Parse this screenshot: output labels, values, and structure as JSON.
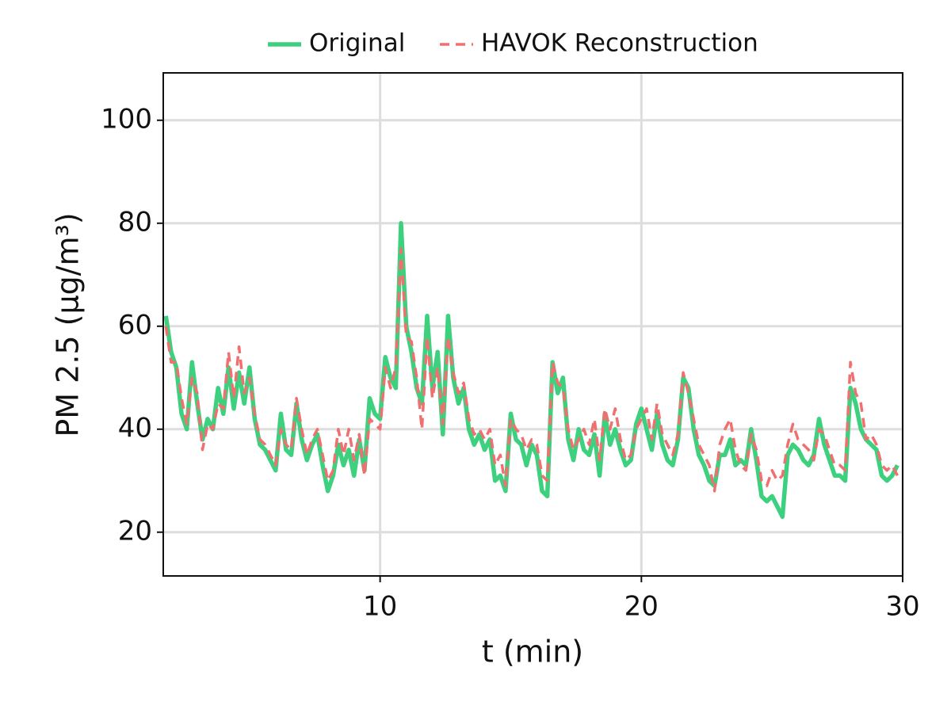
{
  "chart_data": {
    "type": "line",
    "xlabel": "t (min)",
    "ylabel": "PM 2.5 (μg/m³)",
    "x": [
      1.8,
      2,
      2.2,
      2.4,
      2.6,
      2.8,
      3,
      3.2,
      3.4,
      3.6,
      3.8,
      4,
      4.2,
      4.4,
      4.6,
      4.8,
      5,
      5.2,
      5.4,
      5.6,
      5.8,
      6,
      6.2,
      6.4,
      6.6,
      6.8,
      7,
      7.2,
      7.4,
      7.6,
      7.8,
      8,
      8.2,
      8.4,
      8.6,
      8.8,
      9,
      9.2,
      9.4,
      9.6,
      9.8,
      10,
      10.2,
      10.4,
      10.6,
      10.8,
      11,
      11.2,
      11.4,
      11.6,
      11.8,
      12,
      12.2,
      12.4,
      12.6,
      12.8,
      13,
      13.2,
      13.4,
      13.6,
      13.8,
      14,
      14.2,
      14.4,
      14.6,
      14.8,
      15,
      15.2,
      15.4,
      15.6,
      15.8,
      16,
      16.2,
      16.4,
      16.6,
      16.8,
      17,
      17.2,
      17.4,
      17.6,
      17.8,
      18,
      18.2,
      18.4,
      18.6,
      18.8,
      19,
      19.2,
      19.4,
      19.6,
      19.8,
      20,
      20.2,
      20.4,
      20.6,
      20.8,
      21,
      21.2,
      21.4,
      21.6,
      21.8,
      22,
      22.2,
      22.4,
      22.6,
      22.8,
      23,
      23.2,
      23.4,
      23.6,
      23.8,
      24,
      24.2,
      24.4,
      24.6,
      24.8,
      25,
      25.2,
      25.4,
      25.6,
      25.8,
      26,
      26.2,
      26.4,
      26.6,
      26.8,
      27,
      27.2,
      27.4,
      27.6,
      27.8,
      28,
      28.2,
      28.4,
      28.6,
      28.8,
      29,
      29.2,
      29.4,
      29.6,
      29.8
    ],
    "series": [
      {
        "name": "Original",
        "color": "#3dd17f",
        "dash": false,
        "values": [
          62,
          55,
          52,
          43,
          40,
          53,
          45,
          38,
          42,
          40,
          48,
          43,
          52,
          44,
          51,
          45,
          52,
          42,
          37,
          36,
          34,
          32,
          43,
          36,
          35,
          45,
          38,
          34,
          37,
          39,
          33,
          28,
          31,
          37,
          33,
          36,
          31,
          38,
          32,
          46,
          43,
          42,
          54,
          50,
          48,
          80,
          60,
          55,
          48,
          45,
          62,
          48,
          55,
          39,
          62,
          50,
          45,
          48,
          40,
          37,
          39,
          36,
          38,
          30,
          31,
          28,
          43,
          38,
          37,
          33,
          37,
          35,
          28,
          27,
          53,
          47,
          50,
          38,
          34,
          40,
          36,
          35,
          39,
          31,
          43,
          37,
          40,
          36,
          33,
          34,
          41,
          44,
          40,
          36,
          43,
          37,
          34,
          33,
          38,
          50,
          48,
          40,
          35,
          33,
          30,
          29,
          35,
          35,
          38,
          33,
          34,
          33,
          40,
          34,
          27,
          26,
          27,
          25,
          23,
          35,
          37,
          36,
          34,
          33,
          35,
          42,
          37,
          34,
          31,
          31,
          30,
          48,
          45,
          40,
          38,
          37,
          36,
          31,
          30,
          31,
          33
        ]
      },
      {
        "name": "HAVOK Reconstruction",
        "color": "#f07070",
        "dash": true,
        "values": [
          60,
          53,
          53,
          46,
          41,
          50,
          47,
          36,
          41,
          40,
          45,
          44,
          55,
          46,
          56,
          47,
          50,
          43,
          38,
          37,
          35,
          33,
          40,
          37,
          36,
          46,
          40,
          35,
          38,
          40,
          35,
          30,
          32,
          40,
          35,
          40,
          34,
          39,
          31,
          42,
          41,
          40,
          52,
          48,
          52,
          75,
          58,
          57,
          50,
          40,
          58,
          46,
          52,
          41,
          58,
          51,
          47,
          49,
          42,
          39,
          40,
          38,
          40,
          33,
          35,
          29,
          42,
          40,
          39,
          36,
          38,
          37,
          31,
          30,
          53,
          49,
          48,
          40,
          36,
          38,
          40,
          37,
          42,
          34,
          44,
          40,
          44,
          38,
          34,
          35,
          40,
          42,
          44,
          38,
          45,
          39,
          37,
          35,
          39,
          51,
          47,
          42,
          37,
          35,
          33,
          28,
          37,
          40,
          42,
          36,
          33,
          32,
          39,
          36,
          30,
          29,
          32,
          30,
          31,
          37,
          41,
          38,
          37,
          36,
          34,
          40,
          39,
          36,
          33,
          33,
          32,
          53,
          47,
          45,
          38,
          39,
          37,
          33,
          32,
          33,
          31
        ]
      }
    ],
    "xlim": [
      1.7,
      30
    ],
    "ylim": [
      11.5,
      109.2
    ],
    "xticks": [
      10,
      20,
      30
    ],
    "yticks": [
      20,
      40,
      60,
      80,
      100
    ],
    "grid": true,
    "legend": "top"
  }
}
